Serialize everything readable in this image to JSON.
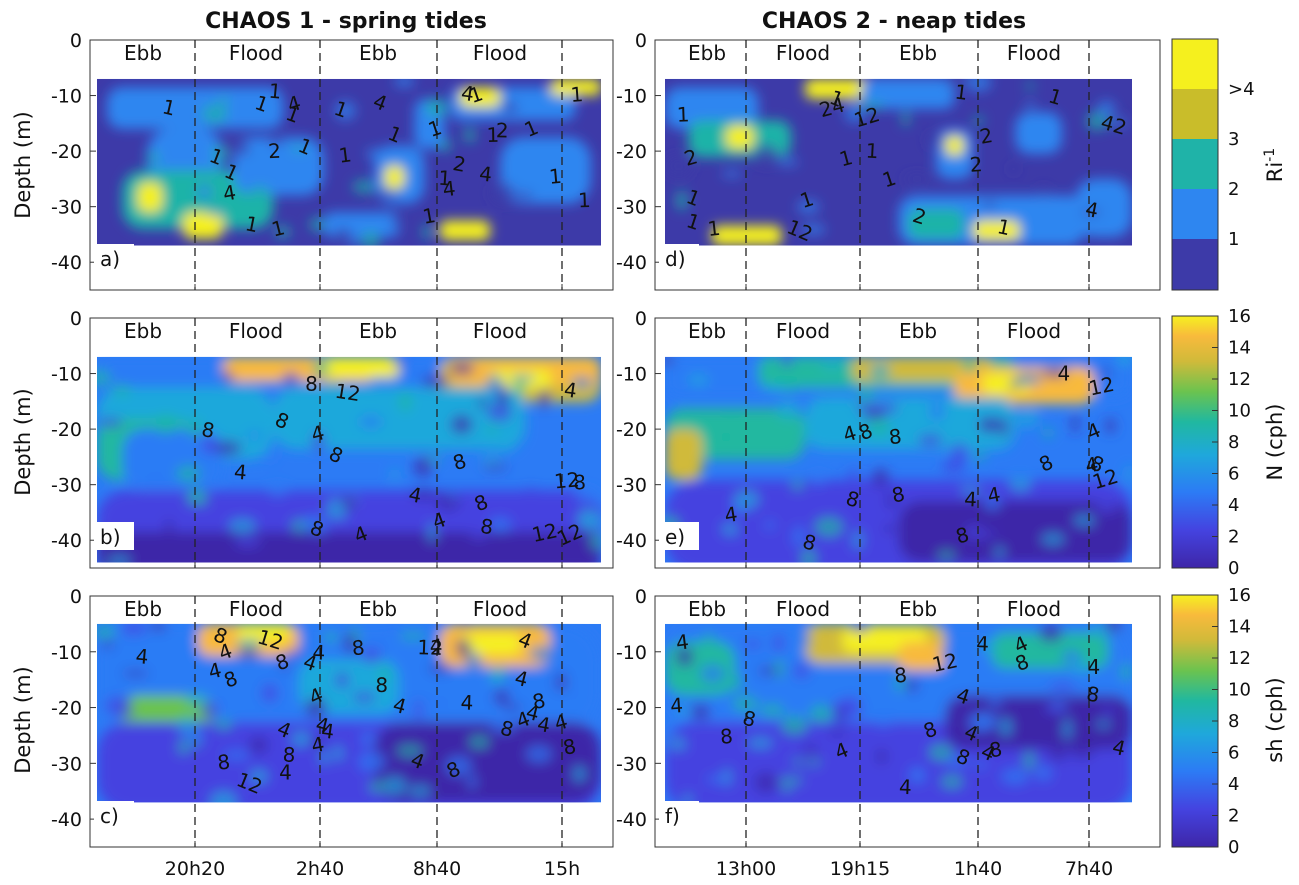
{
  "chart_data": [
    {
      "type": "heatmap",
      "title": "CHAOS 1 - spring tides",
      "panel_label": "a)",
      "ylabel": "Depth (m)",
      "ylim": [
        -45,
        0
      ],
      "yticks": [
        0,
        -10,
        -20,
        -30,
        -40
      ],
      "xticks": [
        "20h20",
        "2h40",
        "8h40",
        "15h"
      ],
      "tide_phases": [
        "Ebb",
        "Flood",
        "Ebb",
        "Flood"
      ],
      "variable": "Ri^-1",
      "contour_levels": [
        1,
        2,
        3,
        4
      ],
      "contour_labels": [
        "1",
        "1",
        "1",
        "4",
        "1",
        "4",
        "1",
        "1",
        "1",
        "1",
        "4",
        "2",
        "2",
        "1",
        "1",
        "1",
        "1",
        "2",
        "1",
        "1",
        "1",
        "1",
        "1",
        "1",
        "1",
        "1",
        "1",
        "4",
        "4",
        "4"
      ]
    },
    {
      "type": "heatmap",
      "title": "",
      "panel_label": "b)",
      "ylabel": "Depth (m)",
      "ylim": [
        -45,
        0
      ],
      "yticks": [
        0,
        -10,
        -20,
        -30,
        -40
      ],
      "xticks": [
        "20h20",
        "2h40",
        "8h40",
        "15h"
      ],
      "tide_phases": [
        "Ebb",
        "Flood",
        "Ebb",
        "Flood"
      ],
      "variable": "N (cph)",
      "contour_levels": [
        4,
        8,
        12
      ],
      "contour_labels": [
        "8",
        "12",
        "4",
        "8",
        "8",
        "4",
        "8",
        "12",
        "8",
        "8",
        "8",
        "12",
        "12",
        "8",
        "4",
        "8",
        "4",
        "4",
        "4"
      ]
    },
    {
      "type": "heatmap",
      "title": "",
      "panel_label": "c)",
      "ylabel": "Depth (m)",
      "ylim": [
        -45,
        0
      ],
      "yticks": [
        0,
        -10,
        -20,
        -30,
        -40
      ],
      "xticks": [
        "20h20",
        "2h40",
        "8h40",
        "15h"
      ],
      "tide_phases": [
        "Ebb",
        "Flood",
        "Ebb",
        "Flood"
      ],
      "variable": "sh (cph)",
      "contour_levels": [
        4,
        8,
        12
      ],
      "contour_labels": [
        "4",
        "8",
        "8",
        "8",
        "4",
        "8",
        "4",
        "8",
        "12",
        "4",
        "4",
        "4",
        "4",
        "4",
        "4",
        "8",
        "4",
        "4",
        "8",
        "4",
        "8",
        "12",
        "4",
        "4",
        "4",
        "4",
        "12",
        "8",
        "4",
        "4",
        "8",
        "4",
        "8",
        "4",
        "4"
      ]
    },
    {
      "type": "heatmap",
      "title": "CHAOS 2 - neap tides",
      "panel_label": "d)",
      "ylabel": "",
      "ylim": [
        -45,
        0
      ],
      "yticks": [
        0,
        -10,
        -20,
        -30,
        -40
      ],
      "xticks": [
        "13h00",
        "19h15",
        "1h40",
        "7h40"
      ],
      "tide_phases": [
        "Ebb",
        "Flood",
        "Ebb",
        "Flood"
      ],
      "variable": "Ri^-1",
      "contour_levels": [
        1,
        2,
        3,
        4
      ],
      "contour_labels": [
        "1",
        "1",
        "2",
        "1",
        "2",
        "1",
        "1",
        "24",
        "1",
        "1",
        "1",
        "42",
        "1",
        "1",
        "2",
        "12",
        "4",
        "1",
        "12",
        "1",
        "2"
      ]
    },
    {
      "type": "heatmap",
      "title": "",
      "panel_label": "e)",
      "ylabel": "",
      "ylim": [
        -45,
        0
      ],
      "yticks": [
        0,
        -10,
        -20,
        -30,
        -40
      ],
      "xticks": [
        "13h00",
        "19h15",
        "1h40",
        "7h40"
      ],
      "tide_phases": [
        "Ebb",
        "Flood",
        "Ebb",
        "Flood"
      ],
      "variable": "N (cph)",
      "contour_levels": [
        4,
        8,
        12
      ],
      "contour_labels": [
        "8",
        "8",
        "4",
        "4",
        "8",
        "8",
        "4",
        "8",
        "8",
        "12",
        "8",
        "8",
        "4",
        "12",
        "4",
        "4",
        "4"
      ]
    },
    {
      "type": "heatmap",
      "title": "",
      "panel_label": "f)",
      "ylabel": "",
      "ylim": [
        -45,
        0
      ],
      "yticks": [
        0,
        -10,
        -20,
        -30,
        -40
      ],
      "xticks": [
        "13h00",
        "19h15",
        "1h40",
        "7h40"
      ],
      "tide_phases": [
        "Ebb",
        "Flood",
        "Ebb",
        "Flood"
      ],
      "variable": "sh (cph)",
      "contour_levels": [
        4,
        8,
        12
      ],
      "contour_labels": [
        "8",
        "8",
        "4",
        "8",
        "4",
        "4",
        "12",
        "8",
        "4",
        "8",
        "8",
        "4",
        "8",
        "4",
        "8",
        "4",
        "4",
        "4",
        "4",
        "4"
      ]
    }
  ],
  "colorbars": [
    {
      "label": "Ri",
      "label_superscript": "-1",
      "tick_labels": [
        "1",
        "2",
        "3",
        ">4"
      ],
      "colors": [
        "#3d3aa8",
        "#2e86f0",
        "#1fb3a8",
        "#c9bd2a",
        "#f5f01e"
      ]
    },
    {
      "label": "N (cph)",
      "tick_labels": [
        "0",
        "2",
        "4",
        "6",
        "8",
        "10",
        "12",
        "14",
        "16"
      ]
    },
    {
      "label": "sh (cph)",
      "tick_labels": [
        "0",
        "2",
        "4",
        "6",
        "8",
        "10",
        "12",
        "14",
        "16"
      ]
    }
  ],
  "colors": {
    "deep": "#3e26a8",
    "blue": "#2c7bf5",
    "teal": "#20b0a8",
    "green": "#6bc34f",
    "orange": "#f8ba3c",
    "yellow": "#f5f020"
  }
}
